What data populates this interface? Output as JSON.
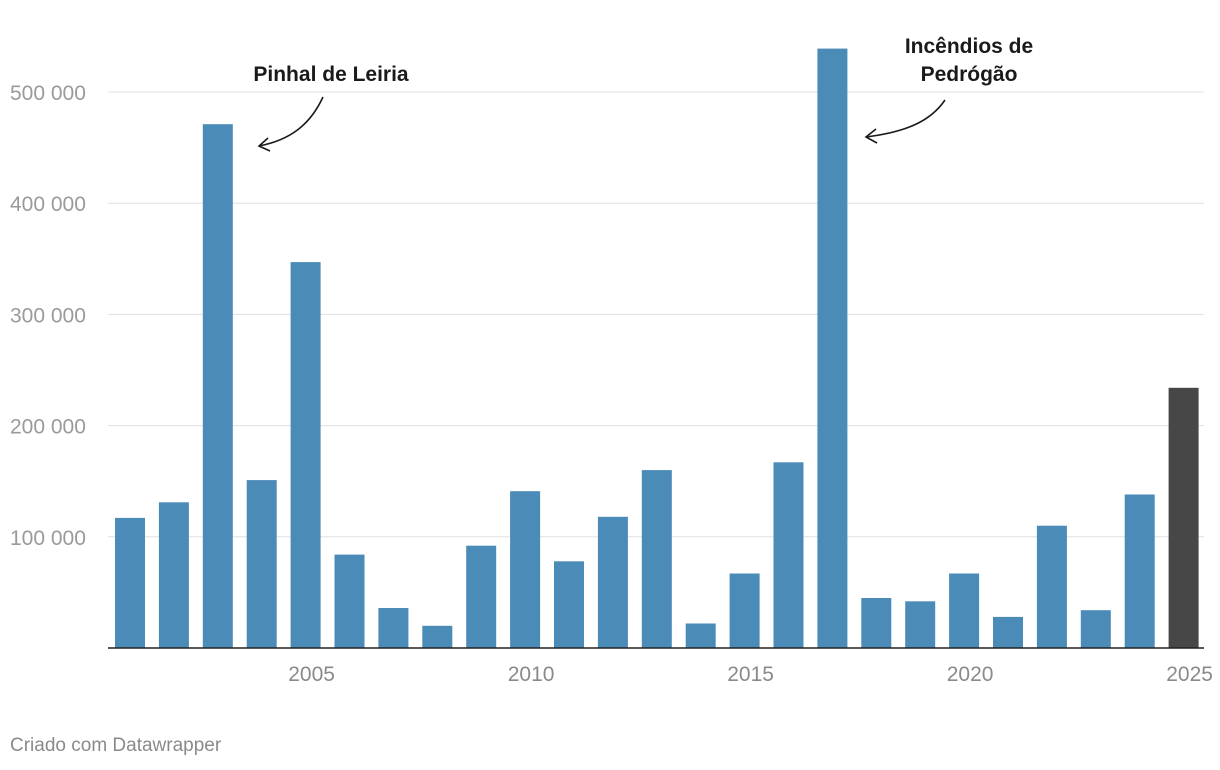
{
  "chart_data": {
    "type": "bar",
    "title": "",
    "xlabel": "",
    "ylabel": "",
    "ylim": [
      0,
      550000
    ],
    "ytick_values": [
      100000,
      200000,
      300000,
      400000,
      500000
    ],
    "ytick_labels": [
      "100 000",
      "200 000",
      "300 000",
      "400 000",
      "500 000"
    ],
    "xtick_values": [
      2005,
      2010,
      2015,
      2020,
      2025
    ],
    "xtick_labels": [
      "2005",
      "2010",
      "2015",
      "2020",
      "2025"
    ],
    "grid": true,
    "categories": [
      2001,
      2002,
      2003,
      2004,
      2005,
      2006,
      2007,
      2008,
      2009,
      2010,
      2011,
      2012,
      2013,
      2014,
      2015,
      2016,
      2017,
      2018,
      2019,
      2020,
      2021,
      2022,
      2023,
      2024,
      2025
    ],
    "values": [
      117000,
      131000,
      471000,
      151000,
      347000,
      84000,
      36000,
      20000,
      92000,
      141000,
      78000,
      118000,
      160000,
      22000,
      67000,
      167000,
      539000,
      45000,
      42000,
      67000,
      28000,
      110000,
      34000,
      138000,
      234000
    ],
    "colors": {
      "default": "#4a8bb7",
      "highlight": "#474747"
    },
    "highlight_category": 2025,
    "annotations": [
      {
        "lines": [
          "Pinhal de Leiria"
        ],
        "target_year": 2003
      },
      {
        "lines": [
          "Incêndios de",
          "Pedrógão"
        ],
        "target_year": 2017
      }
    ]
  },
  "footer": {
    "credit": "Criado com Datawrapper"
  }
}
